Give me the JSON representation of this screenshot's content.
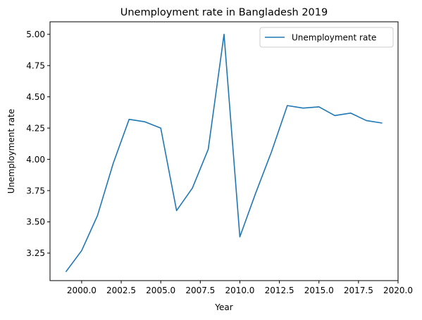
{
  "chart_data": {
    "type": "line",
    "title": "Unemployment rate in Bangladesh 2019",
    "xlabel": "Year",
    "ylabel": "Unemployment rate",
    "xlim": [
      1998.0,
      2020.0
    ],
    "ylim": [
      3.03,
      5.1
    ],
    "grid": false,
    "legend_position": "top-right",
    "x_ticks": [
      2000.0,
      2002.5,
      2005.0,
      2007.5,
      2010.0,
      2012.5,
      2015.0,
      2017.5,
      2020.0
    ],
    "x_tick_labels": [
      "2000.0",
      "2002.5",
      "2005.0",
      "2007.5",
      "2010.0",
      "2012.5",
      "2015.0",
      "2017.5",
      "2020.0"
    ],
    "y_ticks": [
      3.25,
      3.5,
      3.75,
      4.0,
      4.25,
      4.5,
      4.75,
      5.0
    ],
    "y_tick_labels": [
      "3.25",
      "3.50",
      "3.75",
      "4.00",
      "4.25",
      "4.50",
      "4.75",
      "5.00"
    ],
    "x": [
      1999,
      2000,
      2001,
      2002,
      2003,
      2004,
      2005,
      2006,
      2007,
      2008,
      2009,
      2010,
      2011,
      2012,
      2013,
      2014,
      2015,
      2016,
      2017,
      2018,
      2019
    ],
    "series": [
      {
        "name": "Unemployment rate",
        "color": "#1f77b4",
        "values": [
          3.1,
          3.27,
          3.55,
          3.97,
          4.32,
          4.3,
          4.25,
          3.59,
          3.77,
          4.08,
          5.0,
          3.38,
          3.73,
          4.06,
          4.43,
          4.41,
          4.42,
          4.35,
          4.37,
          4.31,
          4.29
        ]
      }
    ]
  }
}
